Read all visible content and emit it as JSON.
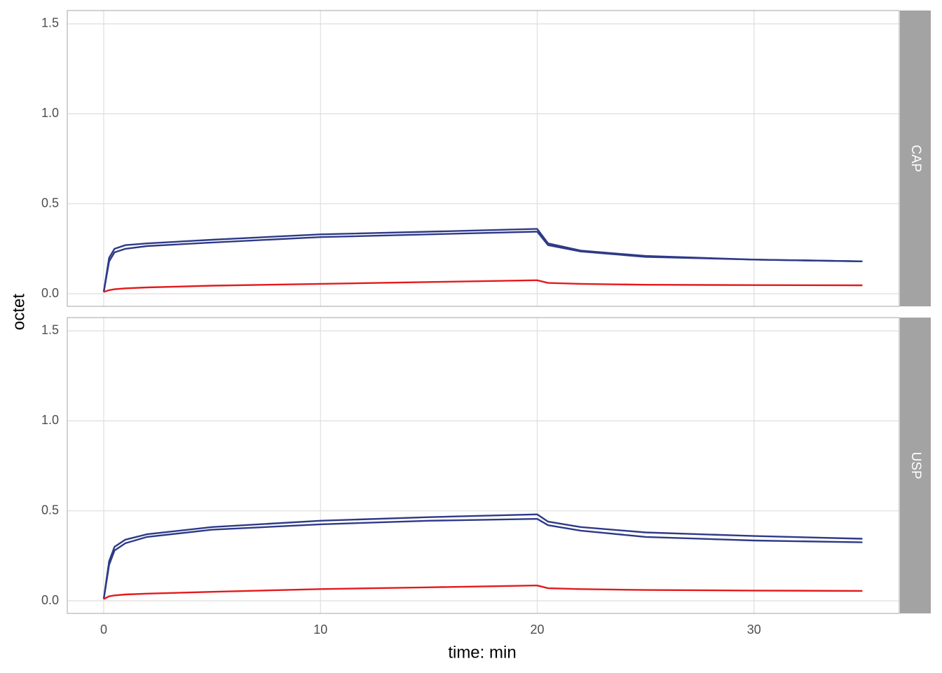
{
  "x_label": "time: min",
  "y_label": "octet",
  "chart_data": [
    {
      "type": "line",
      "strip": "CAP",
      "x": [
        0,
        0.25,
        0.5,
        1,
        2,
        5,
        10,
        15,
        19.9,
        20,
        20.5,
        22,
        25,
        30,
        35
      ],
      "series": [
        {
          "color": "#2e3a87",
          "values": [
            0.01,
            0.2,
            0.25,
            0.27,
            0.28,
            0.3,
            0.33,
            0.345,
            0.36,
            0.36,
            0.28,
            0.24,
            0.21,
            0.19,
            0.18
          ]
        },
        {
          "color": "#2e3a87",
          "values": [
            0.01,
            0.18,
            0.23,
            0.25,
            0.265,
            0.285,
            0.315,
            0.33,
            0.345,
            0.345,
            0.27,
            0.235,
            0.205,
            0.19,
            0.18
          ]
        },
        {
          "color": "#e31a1c",
          "values": [
            0.01,
            0.02,
            0.025,
            0.03,
            0.035,
            0.045,
            0.055,
            0.065,
            0.075,
            0.075,
            0.06,
            0.055,
            0.05,
            0.048,
            0.047
          ]
        }
      ],
      "xlim": [
        -1.68,
        36.7
      ],
      "xticks": [
        0,
        10,
        20,
        30
      ],
      "ylim": [
        -0.07,
        1.574
      ],
      "yticks": [
        {
          "value": 0,
          "label": "0.0"
        },
        0.5,
        {
          "value": 1,
          "label": "1.0"
        },
        1.5
      ],
      "grid": true
    },
    {
      "type": "line",
      "strip": "USP",
      "x": [
        0,
        0.25,
        0.5,
        1,
        2,
        5,
        10,
        15,
        19.9,
        20,
        20.5,
        22,
        25,
        30,
        35
      ],
      "series": [
        {
          "color": "#2e3a87",
          "values": [
            0.01,
            0.22,
            0.3,
            0.34,
            0.37,
            0.41,
            0.445,
            0.465,
            0.48,
            0.48,
            0.44,
            0.41,
            0.38,
            0.36,
            0.345
          ]
        },
        {
          "color": "#2e3a87",
          "values": [
            0.01,
            0.2,
            0.28,
            0.32,
            0.355,
            0.395,
            0.425,
            0.445,
            0.455,
            0.455,
            0.42,
            0.39,
            0.355,
            0.335,
            0.325
          ]
        },
        {
          "color": "#e31a1c",
          "values": [
            0.01,
            0.025,
            0.03,
            0.035,
            0.04,
            0.05,
            0.065,
            0.075,
            0.085,
            0.085,
            0.07,
            0.065,
            0.06,
            0.057,
            0.055
          ]
        }
      ],
      "xlim": [
        -1.68,
        36.7
      ],
      "xticks": [
        0,
        10,
        20,
        30
      ],
      "ylim": [
        -0.07,
        1.574
      ],
      "yticks": [
        {
          "value": 0,
          "label": "0.0"
        },
        0.5,
        {
          "value": 1,
          "label": "1.0"
        },
        1.5
      ],
      "grid": true
    }
  ]
}
